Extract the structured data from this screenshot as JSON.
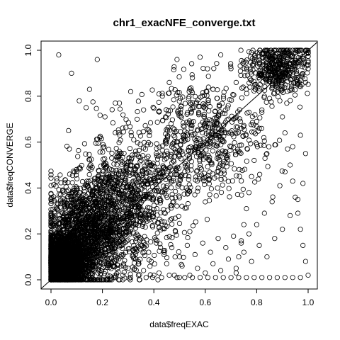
{
  "chart_data": {
    "type": "scatter",
    "title": "chr1_exacNFE_converge.txt",
    "xlabel": "data$freqEXAC",
    "ylabel": "data$freqCONVERGE",
    "xlim": [
      0.0,
      1.0
    ],
    "ylim": [
      0.0,
      1.0
    ],
    "x_ticks": [
      "0.0",
      "0.2",
      "0.4",
      "0.6",
      "0.8",
      "1.0"
    ],
    "y_ticks": [
      "0.0",
      "0.2",
      "0.4",
      "0.6",
      "0.8",
      "1.0"
    ],
    "grid": false,
    "legend": "none",
    "reference_line": {
      "type": "identity",
      "intercept": 0,
      "slope": 1
    },
    "marker": "open-circle",
    "colors": {
      "points": "#000000",
      "background": "#ffffff",
      "axes": "#000000"
    },
    "points": [
      [
        0.03,
        0.98
      ],
      [
        0.08,
        0.9
      ],
      [
        0.11,
        0.78
      ],
      [
        0.15,
        0.83
      ],
      [
        0.18,
        0.96
      ],
      [
        0.21,
        0.71
      ],
      [
        0.25,
        0.77
      ],
      [
        0.31,
        0.82
      ],
      [
        0.36,
        0.74
      ],
      [
        0.42,
        0.81
      ],
      [
        0.46,
        0.86
      ],
      [
        0.49,
        0.96
      ],
      [
        0.55,
        0.88
      ],
      [
        0.58,
        0.97
      ],
      [
        0.63,
        0.83
      ],
      [
        0.66,
        0.98
      ],
      [
        0.7,
        0.92
      ],
      [
        0.72,
        0.86
      ],
      [
        0.75,
        0.95
      ],
      [
        0.78,
        0.99
      ],
      [
        0.81,
        0.91
      ],
      [
        0.84,
        1.0
      ],
      [
        0.87,
        0.95
      ],
      [
        0.9,
        1.0
      ],
      [
        0.93,
        0.98
      ],
      [
        0.95,
        1.0
      ],
      [
        0.97,
        1.0
      ],
      [
        0.99,
        1.0
      ],
      [
        1.0,
        0.99
      ],
      [
        0.96,
        0.93
      ],
      [
        0.92,
        0.89
      ],
      [
        0.88,
        0.84
      ],
      [
        0.85,
        0.79
      ],
      [
        0.82,
        0.74
      ],
      [
        0.8,
        0.69
      ],
      [
        0.77,
        0.73
      ],
      [
        0.74,
        0.66
      ],
      [
        0.71,
        0.7
      ],
      [
        0.68,
        0.64
      ],
      [
        0.65,
        0.68
      ],
      [
        0.62,
        0.6
      ],
      [
        0.59,
        0.66
      ],
      [
        0.56,
        0.57
      ],
      [
        0.53,
        0.63
      ],
      [
        0.5,
        0.54
      ],
      [
        0.47,
        0.58
      ],
      [
        0.44,
        0.49
      ],
      [
        0.41,
        0.55
      ],
      [
        0.38,
        0.47
      ],
      [
        0.35,
        0.52
      ],
      [
        0.32,
        0.43
      ],
      [
        0.29,
        0.47
      ],
      [
        0.26,
        0.39
      ],
      [
        0.23,
        0.45
      ],
      [
        0.2,
        0.36
      ],
      [
        0.17,
        0.42
      ],
      [
        0.14,
        0.33
      ],
      [
        0.11,
        0.38
      ],
      [
        0.08,
        0.29
      ],
      [
        0.05,
        0.34
      ],
      [
        0.02,
        0.25
      ],
      [
        0.04,
        0.18
      ],
      [
        0.06,
        0.12
      ],
      [
        0.09,
        0.16
      ],
      [
        0.12,
        0.1
      ],
      [
        0.15,
        0.14
      ],
      [
        0.18,
        0.08
      ],
      [
        0.21,
        0.12
      ],
      [
        0.24,
        0.06
      ],
      [
        0.27,
        0.1
      ],
      [
        0.3,
        0.05
      ],
      [
        0.33,
        0.09
      ],
      [
        0.36,
        0.04
      ],
      [
        0.39,
        0.08
      ],
      [
        0.42,
        0.03
      ],
      [
        0.45,
        0.07
      ],
      [
        0.48,
        0.02
      ],
      [
        0.51,
        0.06
      ],
      [
        0.54,
        0.02
      ],
      [
        0.57,
        0.05
      ],
      [
        0.6,
        0.03
      ],
      [
        0.63,
        0.07
      ],
      [
        0.66,
        0.04
      ],
      [
        0.69,
        0.09
      ],
      [
        0.72,
        0.05
      ],
      [
        0.75,
        0.12
      ],
      [
        0.78,
        0.08
      ],
      [
        0.81,
        0.15
      ],
      [
        0.84,
        0.1
      ],
      [
        0.87,
        0.18
      ],
      [
        0.9,
        0.22
      ],
      [
        0.93,
        0.28
      ],
      [
        0.96,
        0.35
      ],
      [
        0.98,
        0.42
      ],
      [
        0.99,
        0.55
      ],
      [
        0.97,
        0.63
      ],
      [
        0.94,
        0.58
      ],
      [
        0.91,
        0.47
      ],
      [
        0.89,
        0.41
      ],
      [
        0.86,
        0.34
      ],
      [
        0.83,
        0.29
      ],
      [
        0.8,
        0.24
      ],
      [
        0.77,
        0.2
      ],
      [
        0.74,
        0.16
      ],
      [
        0.71,
        0.19
      ],
      [
        0.68,
        0.14
      ],
      [
        0.65,
        0.18
      ],
      [
        0.62,
        0.12
      ],
      [
        0.59,
        0.16
      ],
      [
        0.56,
        0.11
      ],
      [
        0.53,
        0.15
      ],
      [
        0.5,
        0.1
      ],
      [
        0.47,
        0.14
      ],
      [
        0.44,
        0.11
      ],
      [
        0.41,
        0.16
      ],
      [
        0.38,
        0.12
      ],
      [
        0.35,
        0.18
      ],
      [
        0.32,
        0.13
      ],
      [
        0.29,
        0.2
      ],
      [
        0.26,
        0.16
      ],
      [
        0.23,
        0.22
      ],
      [
        0.2,
        0.18
      ],
      [
        0.17,
        0.24
      ],
      [
        0.14,
        0.2
      ],
      [
        0.11,
        0.26
      ],
      [
        0.08,
        0.22
      ],
      [
        0.05,
        0.28
      ],
      [
        0.02,
        0.2
      ],
      [
        0.01,
        0.14
      ],
      [
        0.03,
        0.09
      ],
      [
        0.07,
        0.05
      ],
      [
        0.1,
        0.03
      ],
      [
        0.13,
        0.01
      ],
      [
        0.16,
        0.02
      ],
      [
        0.19,
        0.01
      ],
      [
        0.22,
        0.02
      ],
      [
        0.25,
        0.01
      ],
      [
        0.28,
        0.02
      ],
      [
        0.31,
        0.01
      ],
      [
        0.34,
        0.02
      ],
      [
        0.37,
        0.01
      ],
      [
        0.4,
        0.02
      ],
      [
        0.43,
        0.01
      ],
      [
        0.46,
        0.02
      ],
      [
        0.49,
        0.01
      ],
      [
        0.52,
        0.01
      ],
      [
        0.55,
        0.01
      ],
      [
        0.58,
        0.01
      ],
      [
        0.61,
        0.01
      ],
      [
        0.64,
        0.01
      ],
      [
        0.67,
        0.01
      ],
      [
        0.7,
        0.01
      ],
      [
        0.73,
        0.01
      ],
      [
        0.76,
        0.01
      ],
      [
        0.79,
        0.01
      ],
      [
        0.82,
        0.01
      ],
      [
        0.85,
        0.01
      ],
      [
        0.88,
        0.01
      ],
      [
        0.91,
        0.01
      ],
      [
        0.94,
        0.01
      ],
      [
        0.97,
        0.01
      ],
      [
        1.0,
        0.02
      ],
      [
        0.99,
        0.08
      ],
      [
        0.98,
        0.15
      ],
      [
        0.97,
        0.22
      ],
      [
        0.96,
        0.29
      ],
      [
        0.95,
        0.36
      ],
      [
        0.94,
        0.43
      ],
      [
        0.93,
        0.5
      ],
      [
        0.92,
        0.57
      ],
      [
        0.91,
        0.64
      ],
      [
        0.9,
        0.71
      ],
      [
        0.89,
        0.78
      ],
      [
        0.88,
        0.85
      ],
      [
        0.87,
        0.92
      ],
      [
        0.86,
        0.99
      ],
      [
        0.85,
        0.94
      ],
      [
        0.84,
        0.87
      ],
      [
        0.83,
        0.8
      ],
      [
        0.82,
        0.73
      ],
      [
        0.81,
        0.66
      ],
      [
        0.8,
        0.59
      ],
      [
        0.79,
        0.52
      ],
      [
        0.78,
        0.45
      ],
      [
        0.77,
        0.38
      ],
      [
        0.76,
        0.31
      ],
      [
        0.75,
        0.24
      ],
      [
        0.74,
        0.17
      ],
      [
        0.73,
        0.1
      ],
      [
        0.72,
        0.03
      ]
    ],
    "dense_clusters": [
      {
        "x_center": 0.05,
        "y_center": 0.08,
        "x_spread": 0.08,
        "y_spread": 0.1,
        "count": 2600
      },
      {
        "x_center": 0.14,
        "y_center": 0.2,
        "x_spread": 0.16,
        "y_spread": 0.22,
        "count": 1400
      },
      {
        "x_center": 0.3,
        "y_center": 0.35,
        "x_spread": 0.22,
        "y_spread": 0.28,
        "count": 900
      },
      {
        "x_center": 0.6,
        "y_center": 0.62,
        "x_spread": 0.22,
        "y_spread": 0.25,
        "count": 550
      },
      {
        "x_center": 0.88,
        "y_center": 0.92,
        "x_spread": 0.12,
        "y_spread": 0.12,
        "count": 450
      }
    ]
  }
}
